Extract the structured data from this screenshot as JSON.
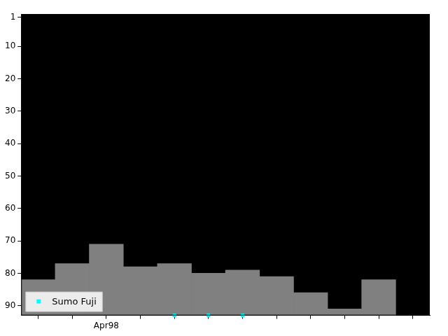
{
  "chart_data": {
    "type": "bar",
    "categories": [
      null,
      null,
      "Apr98",
      null,
      null,
      null,
      null,
      null,
      null,
      null,
      null,
      null
    ],
    "series": [
      {
        "type": "bar",
        "color": "#808080",
        "values": [
          82,
          77,
          71,
          78,
          77,
          80,
          79,
          81,
          86,
          91,
          82,
          null
        ]
      },
      {
        "name": "Sumo Fuji",
        "type": "scatter",
        "marker": "square",
        "color": "#00ffff",
        "values": [
          null,
          null,
          null,
          null,
          93,
          93,
          93,
          null,
          null,
          null,
          null,
          null
        ]
      }
    ],
    "ylim": [
      93,
      0
    ],
    "yticks": [
      1,
      10,
      20,
      30,
      40,
      50,
      60,
      70,
      80,
      90
    ],
    "grid": false,
    "legend": "lower left"
  }
}
